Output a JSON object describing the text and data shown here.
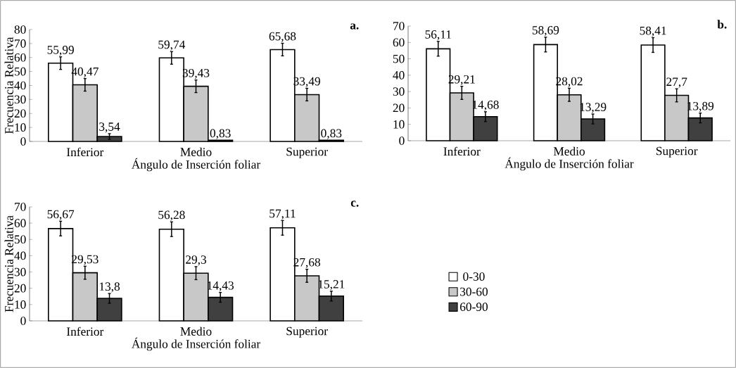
{
  "chart_data": [
    {
      "type": "bar",
      "title": "a.",
      "xlabel": "Ángulo de Inserción foliar",
      "ylabel": "Frecuencia Relativa",
      "categories": [
        "Inferior",
        "Medio",
        "Superior"
      ],
      "ylim": [
        0,
        80
      ],
      "yticks": [
        0,
        10,
        20,
        30,
        40,
        50,
        60,
        70,
        80
      ],
      "legend": false,
      "series": [
        {
          "color": "#ffffff",
          "values": [
            55.99,
            59.74,
            65.68
          ],
          "errors": [
            4.5,
            4.5,
            4.5
          ],
          "value_labels": [
            "55,99",
            "59,74",
            "65,68"
          ]
        },
        {
          "color": "#c8c8c8",
          "values": [
            40.47,
            39.43,
            33.49
          ],
          "errors": [
            4.5,
            4.5,
            4.5
          ],
          "value_labels": [
            "40,47",
            "39,43",
            "33,49"
          ]
        },
        {
          "color": "#404040",
          "values": [
            3.54,
            0.83,
            0.83
          ],
          "errors": [
            2,
            null,
            null
          ],
          "value_labels": [
            "3,54",
            "0,83",
            "0,83"
          ]
        }
      ]
    },
    {
      "type": "bar",
      "title": "b.",
      "xlabel": "Ángulo de Inserción foliar",
      "categories": [
        "Inferior",
        "Medio",
        "Superior"
      ],
      "ylim": [
        0,
        70
      ],
      "yticks": [
        0,
        10,
        20,
        30,
        40,
        50,
        60,
        70
      ],
      "legend": false,
      "series": [
        {
          "color": "#ffffff",
          "values": [
            56.11,
            58.69,
            58.41
          ],
          "errors": [
            4.5,
            4.5,
            4.5
          ],
          "value_labels": [
            "56,11",
            "58,69",
            "58,41"
          ]
        },
        {
          "color": "#c8c8c8",
          "values": [
            29.21,
            28.02,
            27.7
          ],
          "errors": [
            4,
            4,
            4
          ],
          "value_labels": [
            "29,21",
            "28,02",
            "27,7"
          ]
        },
        {
          "color": "#404040",
          "values": [
            14.68,
            13.29,
            13.89
          ],
          "errors": [
            3,
            3,
            3
          ],
          "value_labels": [
            "14,68",
            "13,29",
            "13,89"
          ]
        }
      ]
    },
    {
      "type": "bar",
      "title": "c.",
      "xlabel": "Ángulo de Inserción foliar",
      "ylabel": "Frecuencia Relativa",
      "categories": [
        "Inferior",
        "Medio",
        "Superior"
      ],
      "ylim": [
        0,
        70
      ],
      "yticks": [
        0,
        10,
        20,
        30,
        40,
        50,
        60,
        70
      ],
      "legend": "right",
      "series": [
        {
          "name": "0-30",
          "color": "#ffffff",
          "values": [
            56.67,
            56.28,
            57.11
          ],
          "errors": [
            4.5,
            4.5,
            4.5
          ],
          "value_labels": [
            "56,67",
            "56,28",
            "57,11"
          ]
        },
        {
          "name": "30-60",
          "color": "#c8c8c8",
          "values": [
            29.53,
            29.3,
            27.68
          ],
          "errors": [
            4,
            4,
            4
          ],
          "value_labels": [
            "29,53",
            "29,3",
            "27,68"
          ]
        },
        {
          "name": "60-90",
          "color": "#404040",
          "values": [
            13.8,
            14.43,
            15.21
          ],
          "errors": [
            3,
            3,
            3
          ],
          "value_labels": [
            "13,8",
            "14,43",
            "15,21"
          ]
        }
      ]
    }
  ]
}
